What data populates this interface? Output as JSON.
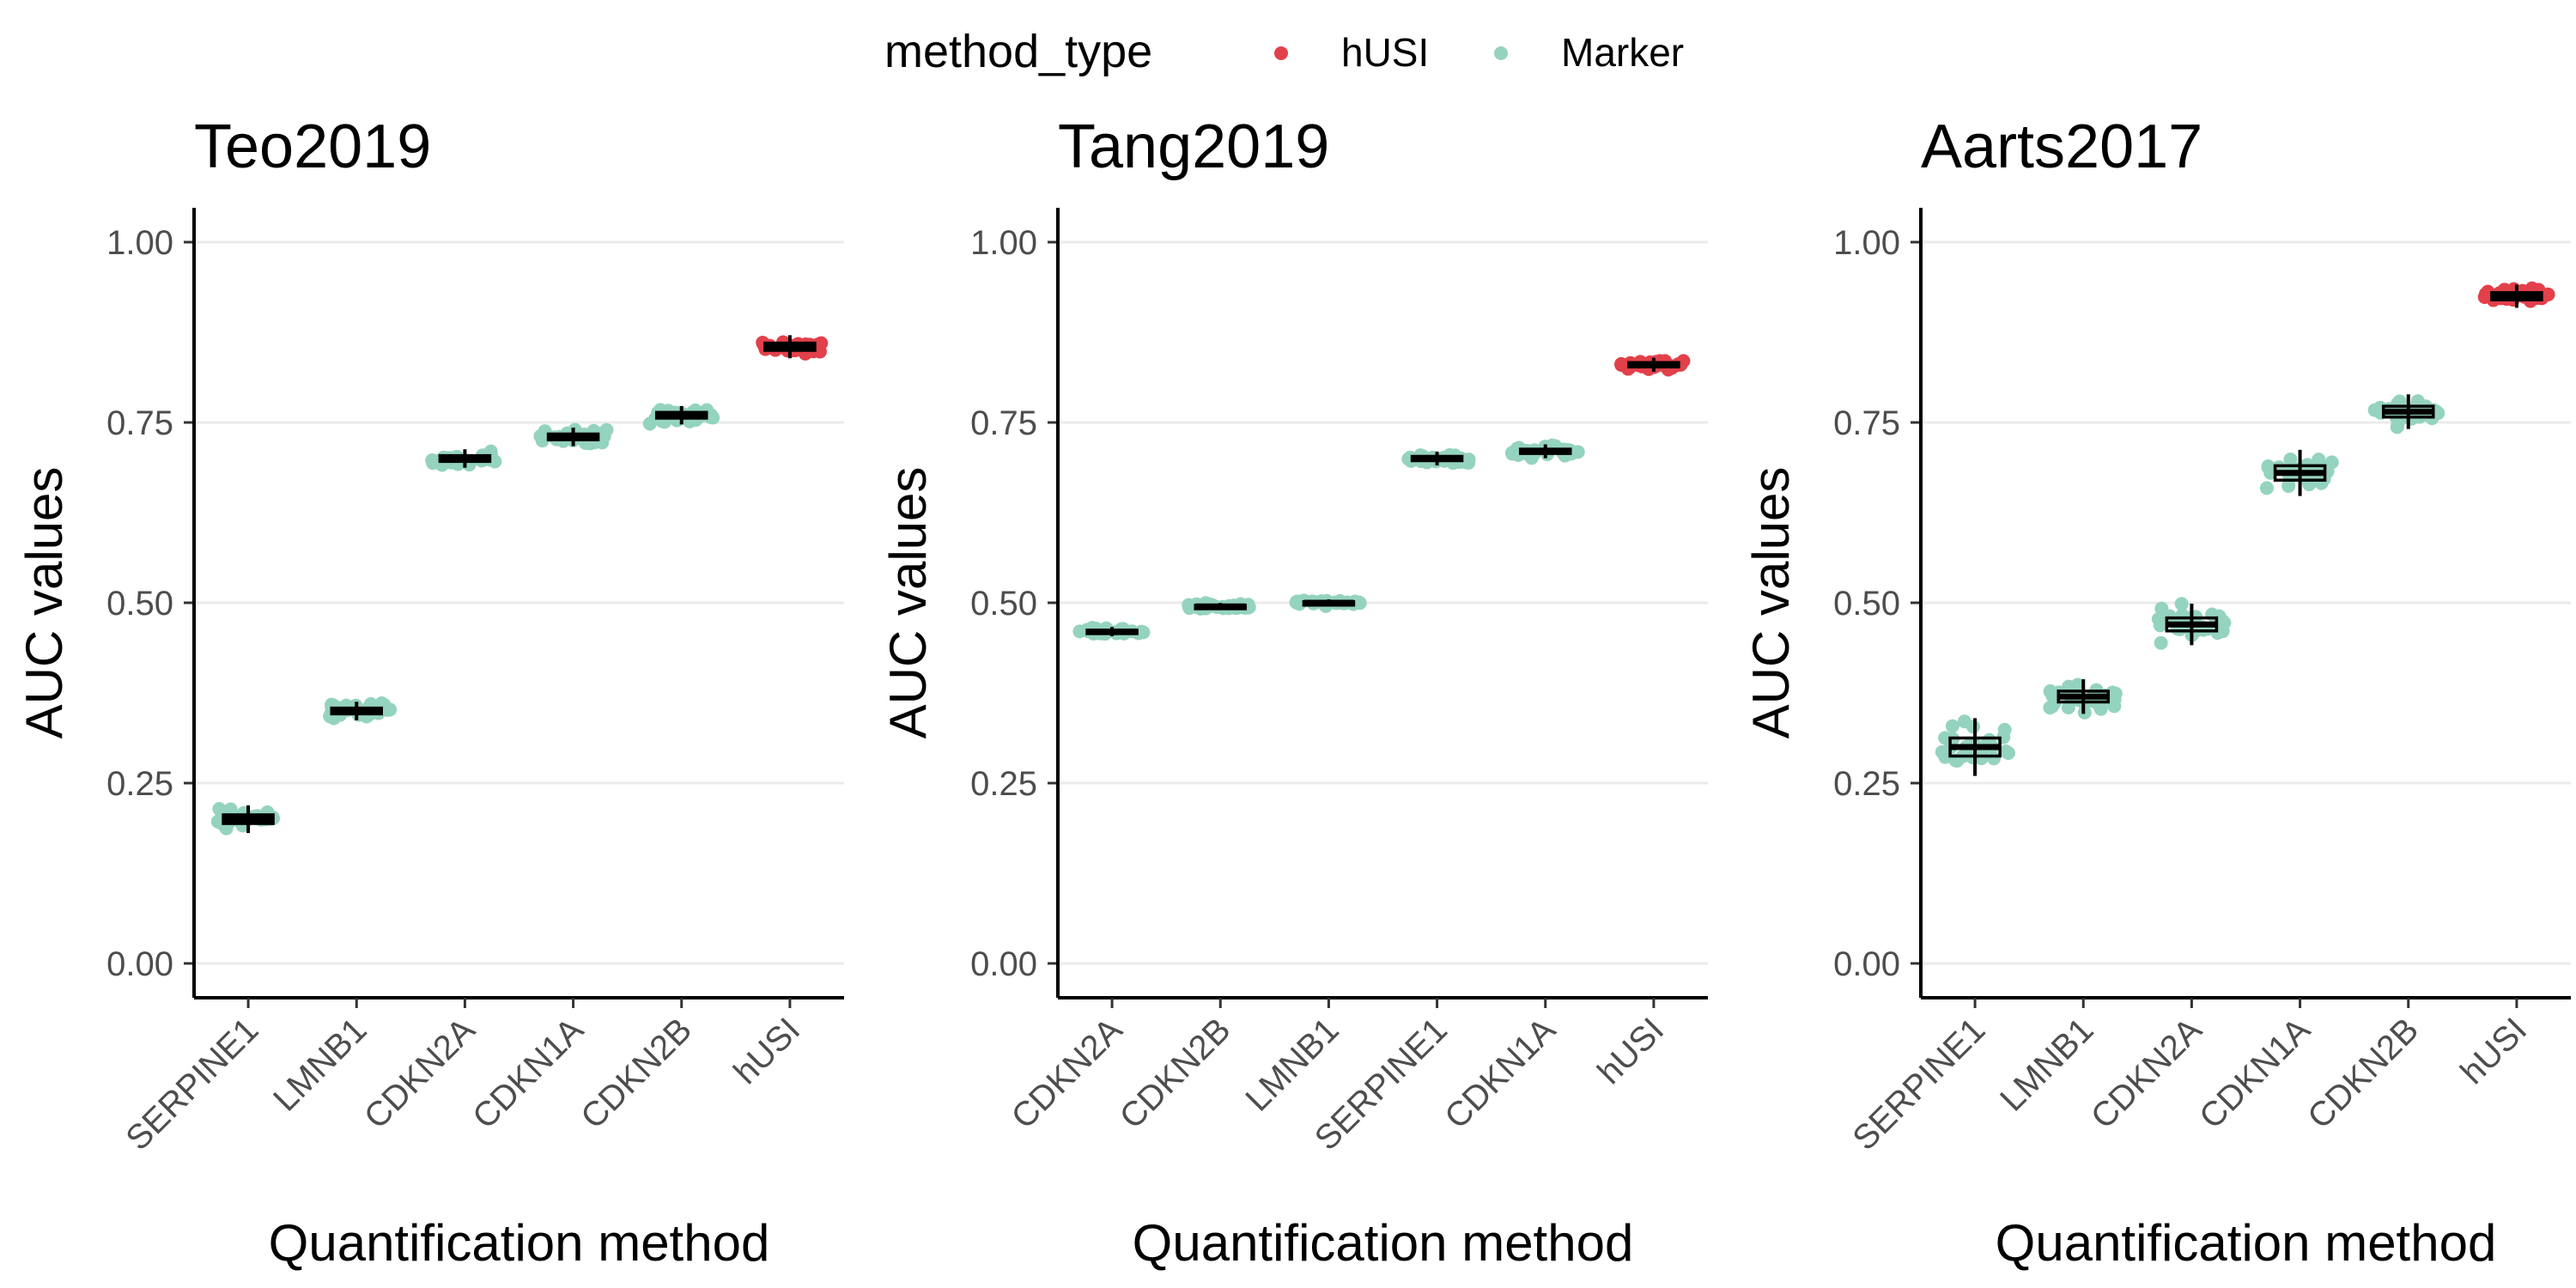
{
  "legend": {
    "title": "method_type",
    "items": [
      {
        "label": "hUSI",
        "color": "#E2404A"
      },
      {
        "label": "Marker",
        "color": "#94D3BF"
      }
    ]
  },
  "chart_data": [
    {
      "type": "box",
      "title": "Teo2019",
      "xlabel": "Quantification method",
      "ylabel": "AUC values",
      "ylim": [
        0,
        1
      ],
      "yticks": [
        "0.00",
        "0.25",
        "0.50",
        "0.75",
        "1.00"
      ],
      "grid": "horizontal",
      "categories": [
        "SERPINE1",
        "LMNB1",
        "CDKN2A",
        "CDKN1A",
        "CDKN2B",
        "hUSI"
      ],
      "groups": [
        "Marker",
        "Marker",
        "Marker",
        "Marker",
        "Marker",
        "hUSI"
      ],
      "values": [
        0.2,
        0.35,
        0.7,
        0.73,
        0.76,
        0.855
      ],
      "spread": [
        0.012,
        0.008,
        0.008,
        0.008,
        0.008,
        0.01
      ]
    },
    {
      "type": "box",
      "title": "Tang2019",
      "xlabel": "Quantification method",
      "ylabel": "AUC values",
      "ylim": [
        0,
        1
      ],
      "yticks": [
        "0.00",
        "0.25",
        "0.50",
        "0.75",
        "1.00"
      ],
      "grid": "horizontal",
      "categories": [
        "CDKN2A",
        "CDKN2B",
        "LMNB1",
        "SERPINE1",
        "CDKN1A",
        "hUSI"
      ],
      "groups": [
        "Marker",
        "Marker",
        "Marker",
        "Marker",
        "Marker",
        "hUSI"
      ],
      "values": [
        0.46,
        0.495,
        0.5,
        0.7,
        0.71,
        0.83
      ],
      "spread": [
        0.004,
        0.003,
        0.003,
        0.006,
        0.006,
        0.006
      ]
    },
    {
      "type": "box",
      "title": "Aarts2017",
      "xlabel": "Quantification method",
      "ylabel": "AUC values",
      "ylim": [
        0,
        1
      ],
      "yticks": [
        "0.00",
        "0.25",
        "0.50",
        "0.75",
        "1.00"
      ],
      "grid": "horizontal",
      "categories": [
        "SERPINE1",
        "LMNB1",
        "CDKN2A",
        "CDKN1A",
        "CDKN2B",
        "hUSI"
      ],
      "groups": [
        "Marker",
        "Marker",
        "Marker",
        "Marker",
        "Marker",
        "hUSI"
      ],
      "values": [
        0.3,
        0.37,
        0.47,
        0.68,
        0.765,
        0.925
      ],
      "spread": [
        0.025,
        0.015,
        0.018,
        0.02,
        0.015,
        0.01
      ]
    }
  ]
}
